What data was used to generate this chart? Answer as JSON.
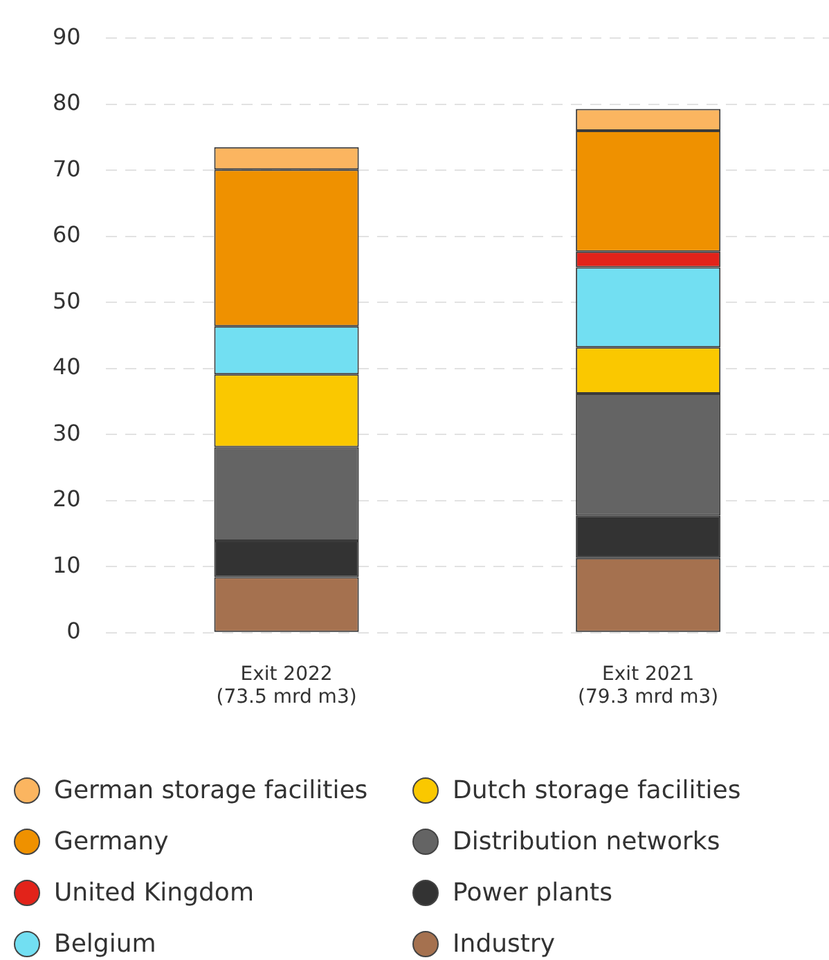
{
  "chart_data": {
    "type": "bar",
    "stacked": true,
    "categories": [
      "Exit 2022\n(73.5 mrd m3)",
      "Exit 2021\n(79.3 mrd m3)"
    ],
    "series": [
      {
        "name": "Industry",
        "color": "#a5714f",
        "values": [
          8.4,
          11.3
        ]
      },
      {
        "name": "Power plants",
        "color": "#333333",
        "values": [
          5.5,
          6.4
        ]
      },
      {
        "name": "Distribution networks",
        "color": "#646464",
        "values": [
          14.2,
          18.5
        ]
      },
      {
        "name": "Dutch storage facilities",
        "color": "#fac800",
        "values": [
          11.0,
          7.0
        ]
      },
      {
        "name": "Belgium",
        "color": "#72dff2",
        "values": [
          7.3,
          12.1
        ]
      },
      {
        "name": "United Kingdom",
        "color": "#e2231a",
        "values": [
          0,
          2.4
        ]
      },
      {
        "name": "Germany",
        "color": "#ef9100",
        "values": [
          23.7,
          18.3
        ]
      },
      {
        "name": "German storage facilities",
        "color": "#fbb560",
        "values": [
          3.4,
          3.3
        ]
      }
    ],
    "ylim": [
      0,
      90
    ],
    "yticks": [
      0,
      10,
      20,
      30,
      40,
      50,
      60,
      70,
      80,
      90
    ],
    "grid": "y",
    "legend": "bottom"
  }
}
